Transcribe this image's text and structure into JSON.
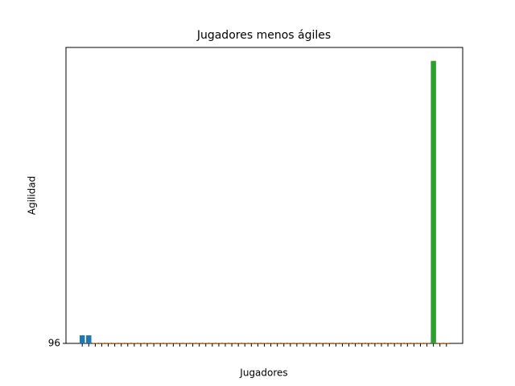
{
  "chart_data": {
    "type": "bar",
    "title": "Jugadores menos ágiles",
    "x_label": "Jugadores",
    "y_label": "Agilidad",
    "categories": [
      null,
      null,
      null,
      null,
      null,
      null,
      null,
      null,
      null,
      null,
      null,
      null,
      null,
      null,
      null,
      null,
      null,
      null,
      null,
      null,
      null,
      null,
      null,
      null,
      null,
      null,
      null,
      null,
      null,
      null,
      null,
      null,
      null,
      null,
      null,
      null,
      null,
      null,
      null,
      null,
      null,
      null,
      null,
      null,
      null,
      null,
      null,
      null,
      null,
      null,
      null,
      null,
      null,
      null,
      null,
      null,
      null
    ],
    "values": [
      96.12,
      96.12,
      96.01,
      96.01,
      96.01,
      96.01,
      96.01,
      96.01,
      96.01,
      96.01,
      96.01,
      96.01,
      96.01,
      96.01,
      96.01,
      96.01,
      96.01,
      96.01,
      96.01,
      96.01,
      96.01,
      96.01,
      96.01,
      96.01,
      96.01,
      96.01,
      96.01,
      96.01,
      96.01,
      96.01,
      96.01,
      96.01,
      96.01,
      96.01,
      96.01,
      96.01,
      96.01,
      96.01,
      96.01,
      96.01,
      96.01,
      96.01,
      96.01,
      96.01,
      96.01,
      96.01,
      96.01,
      96.01,
      96.01,
      96.01,
      96.01,
      96.01,
      96.01,
      96.01,
      100.2,
      96.01,
      96.01
    ],
    "colors": [
      "#1f77b4",
      "#1f77b4",
      "#ff7f0e",
      "#ff7f0e",
      "#ff7f0e",
      "#ff7f0e",
      "#ff7f0e",
      "#ff7f0e",
      "#ff7f0e",
      "#ff7f0e",
      "#ff7f0e",
      "#ff7f0e",
      "#ff7f0e",
      "#ff7f0e",
      "#ff7f0e",
      "#ff7f0e",
      "#ff7f0e",
      "#ff7f0e",
      "#ff7f0e",
      "#ff7f0e",
      "#ff7f0e",
      "#ff7f0e",
      "#ff7f0e",
      "#ff7f0e",
      "#ff7f0e",
      "#ff7f0e",
      "#ff7f0e",
      "#ff7f0e",
      "#ff7f0e",
      "#ff7f0e",
      "#ff7f0e",
      "#ff7f0e",
      "#ff7f0e",
      "#ff7f0e",
      "#ff7f0e",
      "#ff7f0e",
      "#ff7f0e",
      "#ff7f0e",
      "#ff7f0e",
      "#ff7f0e",
      "#ff7f0e",
      "#ff7f0e",
      "#ff7f0e",
      "#ff7f0e",
      "#ff7f0e",
      "#ff7f0e",
      "#ff7f0e",
      "#ff7f0e",
      "#ff7f0e",
      "#ff7f0e",
      "#ff7f0e",
      "#ff7f0e",
      "#ff7f0e",
      "#ff7f0e",
      "#2ca02c",
      "#ff7f0e",
      "#ff7f0e"
    ],
    "ylim": [
      96,
      100.4
    ],
    "yticks": [
      96
    ],
    "grid": false
  }
}
